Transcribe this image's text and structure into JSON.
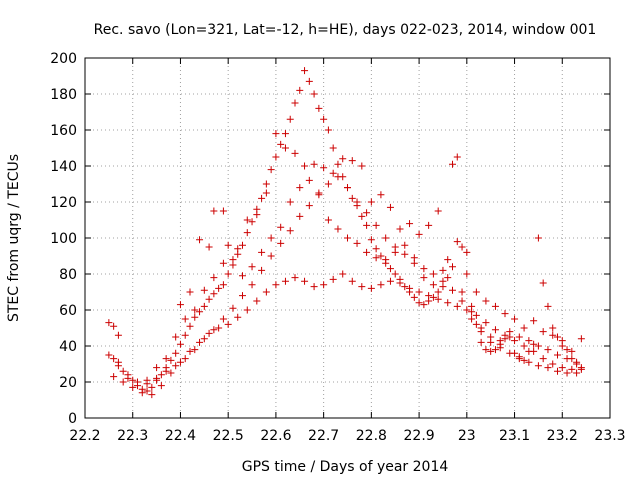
{
  "chart_data": {
    "type": "scatter",
    "title": "Rec. savo (Lon=321, Lat=-12, h=HE), days 022-023, 2014, window 001",
    "xlabel": "GPS time / Days of year 2014",
    "ylabel": "STEC from uqrg / TECUs",
    "xlim": [
      22.2,
      23.3
    ],
    "ylim": [
      0,
      200
    ],
    "xticks": [
      22.2,
      22.3,
      22.4,
      22.5,
      22.6,
      22.7,
      22.8,
      22.9,
      23.0,
      23.1,
      23.2,
      23.3
    ],
    "xtick_labels": [
      "22.2",
      "22.3",
      "22.4",
      "22.5",
      "22.6",
      "22.7",
      "22.8",
      "22.9",
      "23",
      "23.1",
      "23.2",
      "23.3"
    ],
    "yticks": [
      0,
      20,
      40,
      60,
      80,
      100,
      120,
      140,
      160,
      180,
      200
    ],
    "ytick_labels": [
      "0",
      "20",
      "40",
      "60",
      "80",
      "100",
      "120",
      "140",
      "160",
      "180",
      "200"
    ],
    "grid": true,
    "marker": "+",
    "color": "#cc0000",
    "series": [
      {
        "name": "STEC",
        "points": [
          [
            22.25,
            53
          ],
          [
            22.26,
            51
          ],
          [
            22.27,
            46
          ],
          [
            22.25,
            35
          ],
          [
            22.26,
            33
          ],
          [
            22.27,
            31
          ],
          [
            22.28,
            26
          ],
          [
            22.29,
            24
          ],
          [
            22.3,
            21
          ],
          [
            22.31,
            18
          ],
          [
            22.32,
            16
          ],
          [
            22.33,
            15
          ],
          [
            22.34,
            17
          ],
          [
            22.35,
            21
          ],
          [
            22.36,
            24
          ],
          [
            22.37,
            28
          ],
          [
            22.38,
            32
          ],
          [
            22.39,
            36
          ],
          [
            22.4,
            41
          ],
          [
            22.41,
            46
          ],
          [
            22.42,
            51
          ],
          [
            22.43,
            56
          ],
          [
            22.44,
            59
          ],
          [
            22.45,
            62
          ],
          [
            22.46,
            66
          ],
          [
            22.47,
            69
          ],
          [
            22.48,
            72
          ],
          [
            22.49,
            74
          ],
          [
            22.5,
            80
          ],
          [
            22.51,
            85
          ],
          [
            22.52,
            91
          ],
          [
            22.53,
            96
          ],
          [
            22.54,
            103
          ],
          [
            22.55,
            109
          ],
          [
            22.56,
            116
          ],
          [
            22.57,
            122
          ],
          [
            22.58,
            130
          ],
          [
            22.59,
            138
          ],
          [
            22.6,
            145
          ],
          [
            22.61,
            152
          ],
          [
            22.62,
            158
          ],
          [
            22.63,
            166
          ],
          [
            22.64,
            175
          ],
          [
            22.65,
            182
          ],
          [
            22.66,
            193
          ],
          [
            22.67,
            187
          ],
          [
            22.68,
            180
          ],
          [
            22.69,
            172
          ],
          [
            22.7,
            166
          ],
          [
            22.71,
            160
          ],
          [
            22.72,
            150
          ],
          [
            22.73,
            141
          ],
          [
            22.74,
            134
          ],
          [
            22.75,
            128
          ],
          [
            22.76,
            122
          ],
          [
            22.77,
            118
          ],
          [
            22.78,
            112
          ],
          [
            22.79,
            107
          ],
          [
            22.8,
            99
          ],
          [
            22.81,
            94
          ],
          [
            22.82,
            90
          ],
          [
            22.83,
            86
          ],
          [
            22.84,
            83
          ],
          [
            22.85,
            80
          ],
          [
            22.86,
            77
          ],
          [
            22.87,
            73
          ],
          [
            22.88,
            70
          ],
          [
            22.89,
            67
          ],
          [
            22.9,
            64
          ],
          [
            22.91,
            63
          ],
          [
            22.92,
            65
          ],
          [
            22.93,
            67
          ],
          [
            22.94,
            70
          ],
          [
            22.95,
            73
          ],
          [
            22.96,
            78
          ],
          [
            22.97,
            141
          ],
          [
            22.98,
            145
          ],
          [
            22.99,
            95
          ],
          [
            23.0,
            80
          ],
          [
            23.01,
            59
          ],
          [
            23.02,
            52
          ],
          [
            23.03,
            42
          ],
          [
            23.04,
            38
          ],
          [
            23.05,
            37
          ],
          [
            23.06,
            38
          ],
          [
            23.07,
            41
          ],
          [
            23.08,
            44
          ],
          [
            23.09,
            45
          ],
          [
            23.1,
            36
          ],
          [
            23.11,
            33
          ],
          [
            23.12,
            32
          ],
          [
            23.13,
            37
          ],
          [
            23.14,
            41
          ],
          [
            23.15,
            100
          ],
          [
            23.16,
            75
          ],
          [
            23.17,
            62
          ],
          [
            23.18,
            50
          ],
          [
            23.19,
            45
          ],
          [
            23.2,
            43
          ],
          [
            23.21,
            38
          ],
          [
            23.22,
            33
          ],
          [
            23.23,
            30
          ],
          [
            23.24,
            28
          ],
          [
            22.26,
            23
          ],
          [
            22.28,
            20
          ],
          [
            22.3,
            17
          ],
          [
            22.32,
            14
          ],
          [
            22.34,
            13
          ],
          [
            22.36,
            18
          ],
          [
            22.38,
            25
          ],
          [
            22.4,
            31
          ],
          [
            22.42,
            37
          ],
          [
            22.44,
            42
          ],
          [
            22.46,
            47
          ],
          [
            22.48,
            50
          ],
          [
            22.5,
            52
          ],
          [
            22.52,
            56
          ],
          [
            22.54,
            60
          ],
          [
            22.56,
            65
          ],
          [
            22.58,
            70
          ],
          [
            22.6,
            74
          ],
          [
            22.62,
            76
          ],
          [
            22.64,
            78
          ],
          [
            22.66,
            76
          ],
          [
            22.68,
            73
          ],
          [
            22.7,
            74
          ],
          [
            22.72,
            77
          ],
          [
            22.74,
            80
          ],
          [
            22.76,
            76
          ],
          [
            22.78,
            73
          ],
          [
            22.8,
            72
          ],
          [
            22.82,
            74
          ],
          [
            22.84,
            76
          ],
          [
            22.86,
            75
          ],
          [
            22.88,
            72
          ],
          [
            22.9,
            70
          ],
          [
            22.92,
            68
          ],
          [
            22.94,
            66
          ],
          [
            22.96,
            64
          ],
          [
            22.98,
            62
          ],
          [
            23.0,
            60
          ],
          [
            23.02,
            57
          ],
          [
            23.04,
            53
          ],
          [
            23.06,
            49
          ],
          [
            23.08,
            46
          ],
          [
            23.1,
            43
          ],
          [
            23.12,
            40
          ],
          [
            23.14,
            37
          ],
          [
            23.16,
            33
          ],
          [
            23.18,
            30
          ],
          [
            23.2,
            28
          ],
          [
            23.22,
            27
          ],
          [
            23.24,
            27
          ],
          [
            22.27,
            29
          ],
          [
            22.29,
            22
          ],
          [
            22.31,
            20
          ],
          [
            22.33,
            19
          ],
          [
            22.35,
            22
          ],
          [
            22.37,
            26
          ],
          [
            22.39,
            29
          ],
          [
            22.41,
            33
          ],
          [
            22.43,
            38
          ],
          [
            22.45,
            44
          ],
          [
            22.47,
            49
          ],
          [
            22.49,
            55
          ],
          [
            22.51,
            61
          ],
          [
            22.53,
            68
          ],
          [
            22.55,
            74
          ],
          [
            22.57,
            82
          ],
          [
            22.59,
            90
          ],
          [
            22.61,
            97
          ],
          [
            22.63,
            104
          ],
          [
            22.65,
            112
          ],
          [
            22.67,
            118
          ],
          [
            22.69,
            124
          ],
          [
            22.71,
            130
          ],
          [
            22.73,
            134
          ],
          [
            22.75,
            128
          ],
          [
            22.77,
            120
          ],
          [
            22.79,
            114
          ],
          [
            22.81,
            107
          ],
          [
            22.83,
            100
          ],
          [
            22.85,
            95
          ],
          [
            22.87,
            91
          ],
          [
            22.89,
            86
          ],
          [
            22.91,
            83
          ],
          [
            22.93,
            80
          ],
          [
            22.95,
            76
          ],
          [
            22.97,
            71
          ],
          [
            22.99,
            65
          ],
          [
            23.01,
            55
          ],
          [
            23.03,
            48
          ],
          [
            23.05,
            42
          ],
          [
            23.07,
            39
          ],
          [
            23.09,
            36
          ],
          [
            23.11,
            34
          ],
          [
            23.13,
            31
          ],
          [
            23.15,
            29
          ],
          [
            23.17,
            28
          ],
          [
            23.19,
            26
          ],
          [
            23.21,
            25
          ],
          [
            23.23,
            25
          ],
          [
            22.4,
            63
          ],
          [
            22.42,
            70
          ],
          [
            22.44,
            99
          ],
          [
            22.46,
            95
          ],
          [
            22.47,
            115
          ],
          [
            22.49,
            115
          ],
          [
            22.5,
            96
          ],
          [
            22.52,
            94
          ],
          [
            22.54,
            110
          ],
          [
            22.56,
            113
          ],
          [
            22.58,
            125
          ],
          [
            22.6,
            158
          ],
          [
            22.62,
            150
          ],
          [
            22.64,
            147
          ],
          [
            22.66,
            140
          ],
          [
            22.68,
            141
          ],
          [
            22.7,
            139
          ],
          [
            22.72,
            136
          ],
          [
            22.74,
            144
          ],
          [
            22.76,
            143
          ],
          [
            22.78,
            140
          ],
          [
            22.8,
            120
          ],
          [
            22.82,
            124
          ],
          [
            22.84,
            117
          ],
          [
            22.86,
            105
          ],
          [
            22.88,
            108
          ],
          [
            22.9,
            102
          ],
          [
            22.92,
            107
          ],
          [
            22.94,
            115
          ],
          [
            22.96,
            88
          ],
          [
            22.98,
            98
          ],
          [
            23.0,
            92
          ],
          [
            23.02,
            70
          ],
          [
            23.04,
            65
          ],
          [
            23.06,
            62
          ],
          [
            23.08,
            58
          ],
          [
            23.1,
            55
          ],
          [
            23.12,
            50
          ],
          [
            23.14,
            54
          ],
          [
            23.16,
            48
          ],
          [
            23.18,
            46
          ],
          [
            23.2,
            40
          ],
          [
            23.22,
            37
          ],
          [
            23.24,
            44
          ],
          [
            22.33,
            21
          ],
          [
            22.35,
            28
          ],
          [
            22.37,
            33
          ],
          [
            22.39,
            45
          ],
          [
            22.41,
            55
          ],
          [
            22.43,
            60
          ],
          [
            22.45,
            71
          ],
          [
            22.47,
            78
          ],
          [
            22.49,
            86
          ],
          [
            22.51,
            88
          ],
          [
            22.53,
            79
          ],
          [
            22.55,
            84
          ],
          [
            22.57,
            92
          ],
          [
            22.59,
            100
          ],
          [
            22.61,
            106
          ],
          [
            22.63,
            120
          ],
          [
            22.65,
            128
          ],
          [
            22.67,
            132
          ],
          [
            22.69,
            125
          ],
          [
            22.71,
            110
          ],
          [
            22.73,
            105
          ],
          [
            22.75,
            100
          ],
          [
            22.77,
            97
          ],
          [
            22.79,
            92
          ],
          [
            22.81,
            89
          ],
          [
            22.83,
            88
          ],
          [
            22.85,
            92
          ],
          [
            22.87,
            96
          ],
          [
            22.89,
            89
          ],
          [
            22.91,
            78
          ],
          [
            22.93,
            74
          ],
          [
            22.95,
            82
          ],
          [
            22.97,
            84
          ],
          [
            22.99,
            70
          ],
          [
            23.01,
            62
          ],
          [
            23.03,
            50
          ],
          [
            23.05,
            45
          ],
          [
            23.07,
            43
          ],
          [
            23.09,
            48
          ],
          [
            23.11,
            45
          ],
          [
            23.13,
            43
          ],
          [
            23.15,
            40
          ],
          [
            23.17,
            38
          ],
          [
            23.19,
            35
          ],
          [
            23.21,
            33
          ],
          [
            23.23,
            31
          ]
        ]
      }
    ]
  }
}
